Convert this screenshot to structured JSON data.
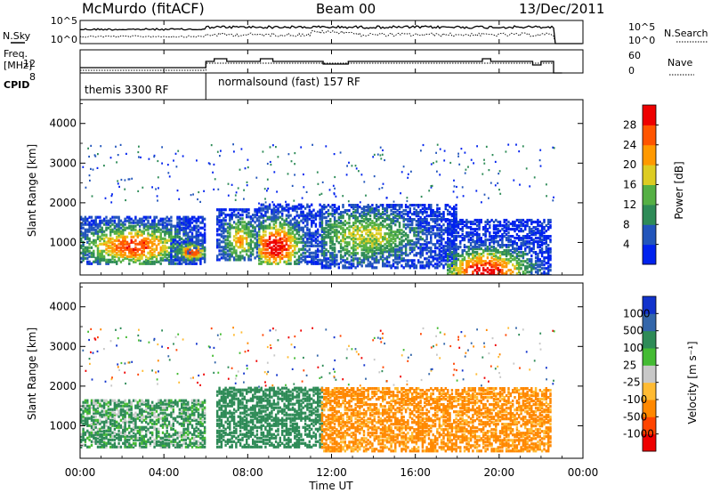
{
  "header": {
    "station": "McMurdo (fitACF)",
    "beam": "Beam 00",
    "date": "13/Dec/2011"
  },
  "side_labels": {
    "nsky": "N.Sky",
    "nsearch": "N.Search",
    "freq": "Freq.",
    "freq_unit": "[MHz]",
    "nave": "Nave",
    "cpid": "CPID"
  },
  "noise_axis": {
    "left_ticks": [
      "10^5",
      "10^0"
    ],
    "right_ticks": [
      "10^5",
      "10^0"
    ]
  },
  "freq_axis": {
    "left_ticks": [
      "12",
      "8"
    ],
    "right_ticks": [
      "60",
      "0"
    ]
  },
  "cpid": [
    {
      "label": "themis 3300 RF",
      "start_hour": 0
    },
    {
      "label": "normalsound (fast) 157 RF",
      "start_hour": 6.0
    }
  ],
  "x_axis": {
    "label": "Time UT",
    "ticks": [
      "00:00",
      "04:00",
      "08:00",
      "12:00",
      "16:00",
      "20:00",
      "00:00"
    ],
    "tick_hours": [
      0,
      4,
      8,
      12,
      16,
      20,
      24
    ]
  },
  "colors": {
    "power": [
      "#0022ee",
      "#2255bb",
      "#2e8b57",
      "#55b044",
      "#ddcc22",
      "#ff9900",
      "#ff5500",
      "#ee0000"
    ],
    "velocity": [
      "#ee0000",
      "#ff4400",
      "#ff8800",
      "#ffbb33",
      "#c8c8c8",
      "#44bb33",
      "#2e8b57",
      "#3366aa",
      "#1133cc"
    ]
  },
  "chart_data": [
    {
      "type": "heatmap",
      "title": "",
      "ylabel": "Slant Range [km]",
      "xlabel": "",
      "xlim": [
        0,
        24
      ],
      "ylim": [
        180,
        4600
      ],
      "yticks": [
        "1000",
        "2000",
        "3000",
        "4000"
      ],
      "ytick_values": [
        1000,
        2000,
        3000,
        4000
      ],
      "colorbar": {
        "label": "Power [dB]",
        "ticks": [
          "4",
          "8",
          "12",
          "16",
          "20",
          "24",
          "28"
        ],
        "range": [
          0,
          30
        ]
      },
      "regions": [
        {
          "t0": 0.0,
          "t1": 5.9,
          "r0": 500,
          "r1": 1700,
          "peak_t": 2.5,
          "peak_r": 950,
          "peak_value": 24
        },
        {
          "t0": 4.3,
          "t1": 5.9,
          "r0": 600,
          "r1": 1100,
          "peak_t": 5.3,
          "peak_r": 800,
          "peak_value": 26
        },
        {
          "t0": 6.5,
          "t1": 8.5,
          "r0": 600,
          "r1": 1900,
          "peak_t": 7.6,
          "peak_r": 1100,
          "peak_value": 18
        },
        {
          "t0": 8.5,
          "t1": 11.5,
          "r0": 500,
          "r1": 2000,
          "peak_t": 9.3,
          "peak_r": 950,
          "peak_value": 28
        },
        {
          "t0": 11.5,
          "t1": 18.0,
          "r0": 400,
          "r1": 2000,
          "peak_t": 13.5,
          "peak_r": 1200,
          "peak_value": 14
        },
        {
          "t0": 17.5,
          "t1": 22.5,
          "r0": 200,
          "r1": 1600,
          "peak_t": 19.3,
          "peak_r": 280,
          "peak_value": 28
        }
      ]
    },
    {
      "type": "heatmap",
      "title": "",
      "ylabel": "Slant Range [km]",
      "xlabel": "Time UT",
      "xlim": [
        0,
        24
      ],
      "ylim": [
        180,
        4600
      ],
      "yticks": [
        "1000",
        "2000",
        "3000",
        "4000"
      ],
      "ytick_values": [
        1000,
        2000,
        3000,
        4000
      ],
      "colorbar": {
        "label": "Velocity [m s⁻¹]",
        "ticks": [
          "1000",
          "500",
          "100",
          "25",
          "-25",
          "-100",
          "-500",
          "-1000"
        ],
        "range": [
          -1000,
          1000
        ]
      },
      "regions": [
        {
          "t0": 0.0,
          "t1": 5.9,
          "r0": 500,
          "r1": 1700,
          "velocity": 150
        },
        {
          "t0": 6.5,
          "t1": 11.5,
          "r0": 500,
          "r1": 2000,
          "velocity": 300
        },
        {
          "t0": 11.5,
          "t1": 22.5,
          "r0": 400,
          "r1": 2000,
          "velocity": -200
        }
      ]
    }
  ]
}
